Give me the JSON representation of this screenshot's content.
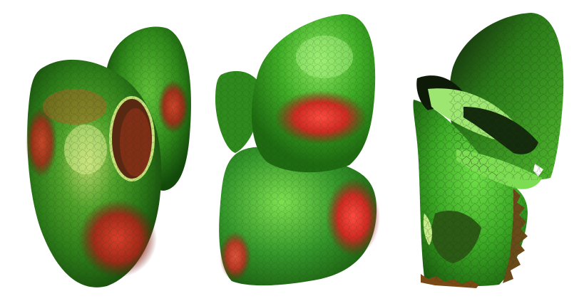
{
  "figure": {
    "panels": [
      {
        "shape": "tube-surface",
        "base_color": "#2f8f1f",
        "highlight_color": "#cfe88a",
        "hot_color": "#e02a2a"
      },
      {
        "shape": "lobed-surface",
        "base_color": "#3aa526",
        "highlight_color": "#a8f080",
        "hot_color": "#ff3a3a"
      },
      {
        "shape": "torn-surface",
        "base_color": "#46c42e",
        "highlight_color": "#d8f5a0",
        "hot_color": "#1a1a10"
      }
    ],
    "colors": {
      "background": "#ffffff",
      "mesh_lines": "#1f3a14",
      "green_dark": "#1f5a10",
      "green_mid": "#3c9a22",
      "green_light": "#6fd64a",
      "red_dark": "#8a1a12",
      "red_mid": "#d22a22",
      "red_light": "#ff5a4a"
    }
  }
}
